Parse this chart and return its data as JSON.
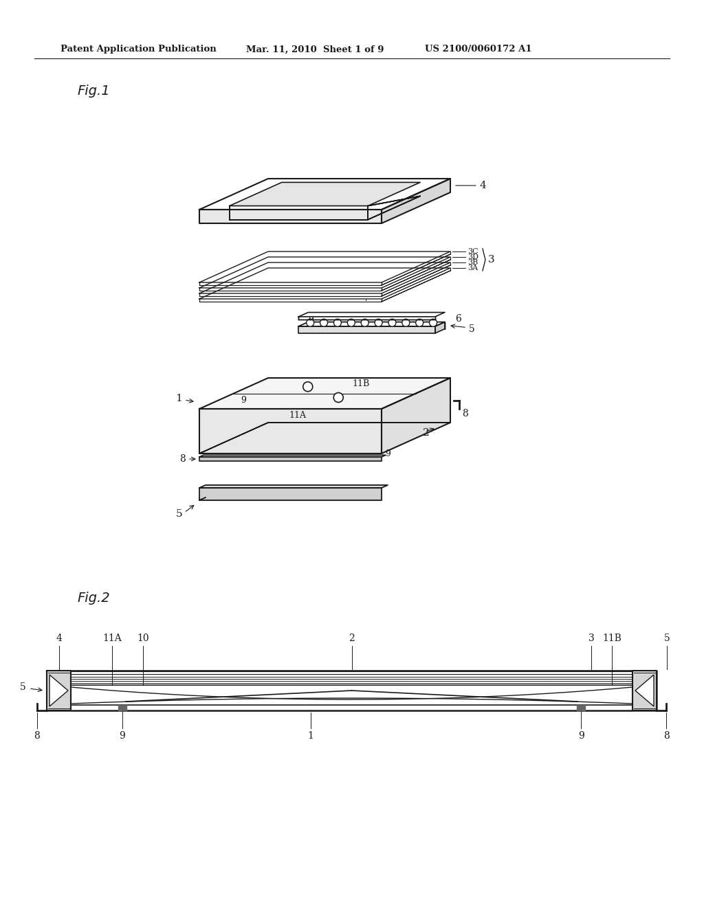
{
  "background_color": "#ffffff",
  "header_text": "Patent Application Publication",
  "header_date": "Mar. 11, 2010  Sheet 1 of 9",
  "header_patent": "US 2100/0060172 A1",
  "fig1_label": "Fig.1",
  "fig2_label": "Fig.2",
  "line_color": "#1a1a1a"
}
